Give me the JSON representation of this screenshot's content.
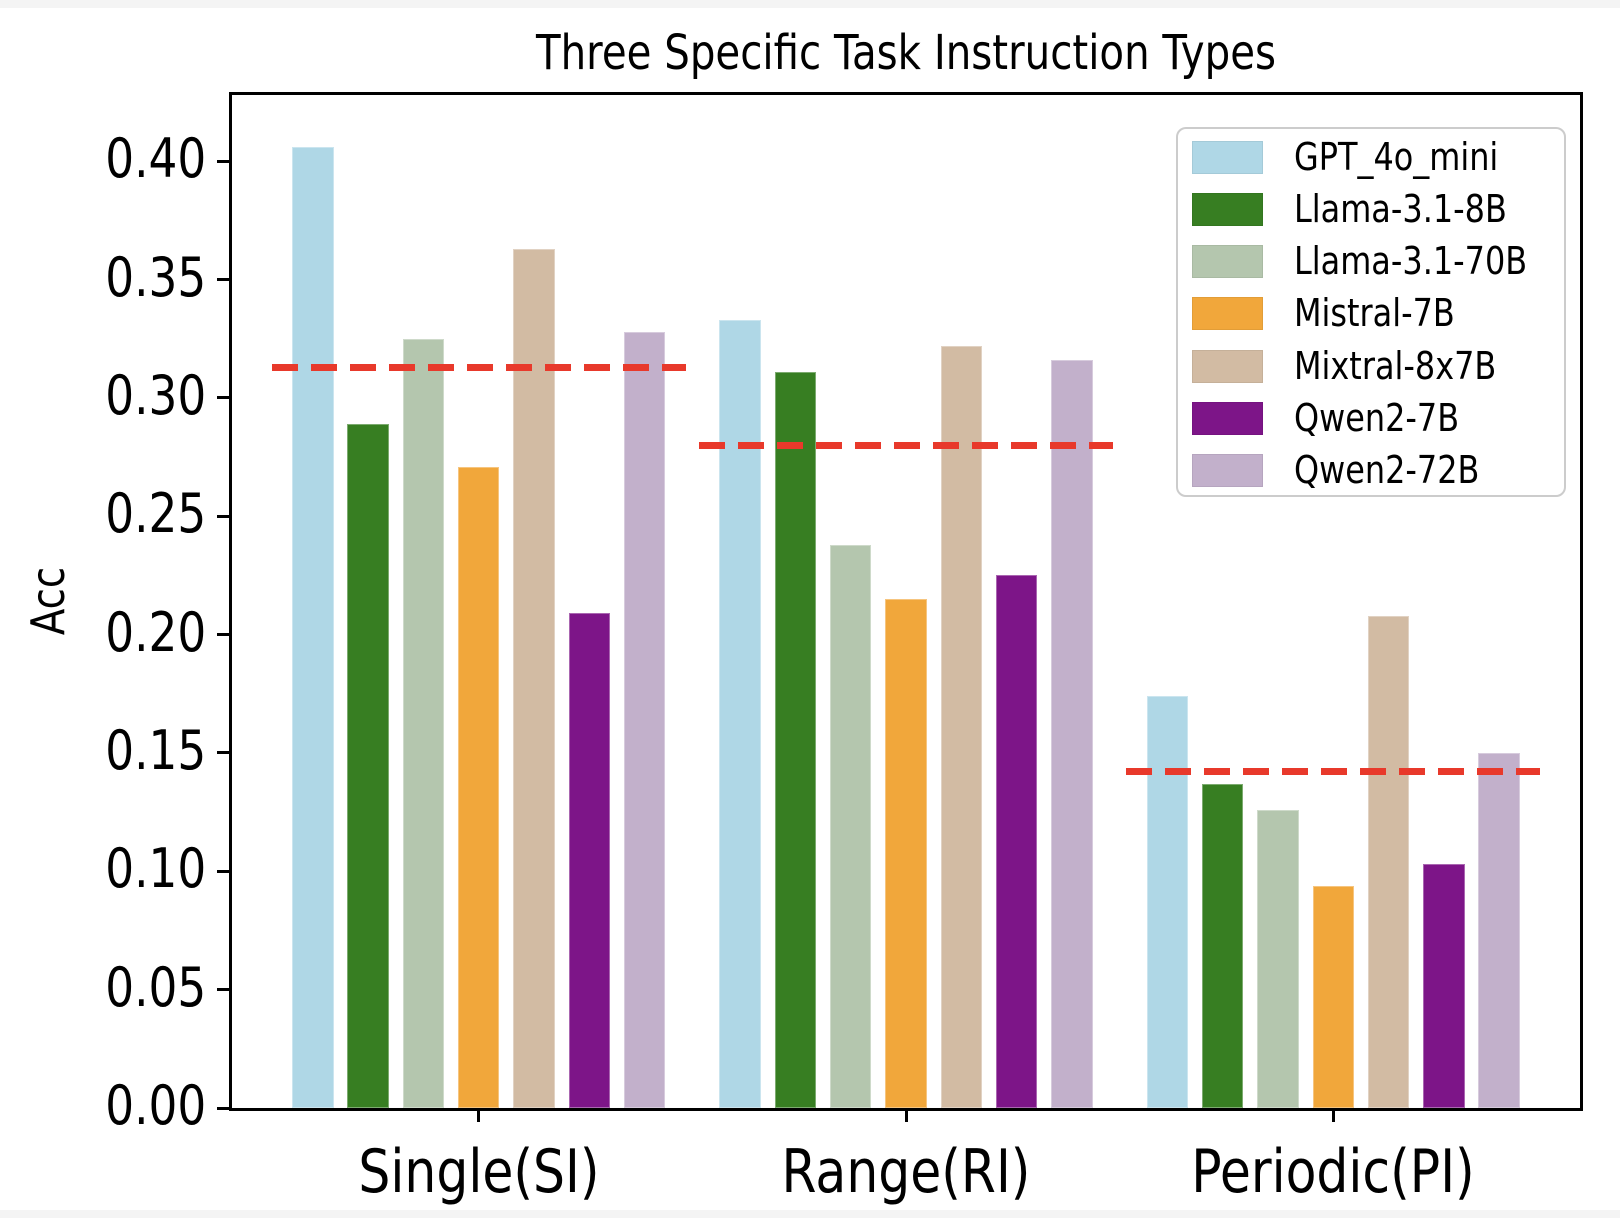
{
  "chart_data": {
    "type": "bar",
    "title": "Three Specific Task Instruction Types",
    "xlabel": "",
    "ylabel": "Acc",
    "categories": [
      "Single(SI)",
      "Range(RI)",
      "Periodic(PI)"
    ],
    "series": [
      {
        "name": "GPT_4o_mini",
        "color": "#AFD7E6",
        "values": [
          0.406,
          0.333,
          0.174
        ]
      },
      {
        "name": "Llama-3.1-8B",
        "color": "#377E22",
        "values": [
          0.289,
          0.311,
          0.137
        ]
      },
      {
        "name": "Llama-3.1-70B",
        "color": "#B4C6AE",
        "values": [
          0.325,
          0.238,
          0.126
        ]
      },
      {
        "name": "Mistral-7B",
        "color": "#F1A73B",
        "values": [
          0.271,
          0.215,
          0.094
        ]
      },
      {
        "name": "Mixtral-8x7B",
        "color": "#D2BBA3",
        "values": [
          0.363,
          0.322,
          0.208
        ]
      },
      {
        "name": "Qwen2-7B",
        "color": "#7D1588",
        "values": [
          0.209,
          0.225,
          0.103
        ]
      },
      {
        "name": "Qwen2-72B",
        "color": "#C2B0CB",
        "values": [
          0.328,
          0.316,
          0.15
        ]
      }
    ],
    "mean_lines": {
      "values": [
        0.313,
        0.28,
        0.142
      ],
      "color": "#E8392B",
      "style": "dashed"
    },
    "y_ticks": [
      0.0,
      0.05,
      0.1,
      0.15,
      0.2,
      0.25,
      0.3,
      0.35,
      0.4
    ],
    "ylim": [
      0,
      0.428
    ],
    "legend_position": "upper right",
    "grid": false
  }
}
